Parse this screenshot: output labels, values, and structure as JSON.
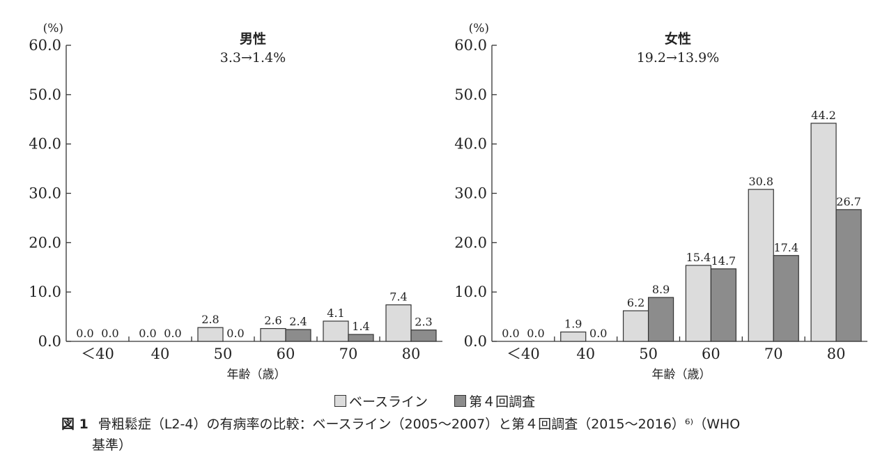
{
  "chart_data": [
    {
      "type": "bar",
      "title": "男性",
      "subtitle": "3.3→1.4%",
      "unit_label": "(%)",
      "xlabel": "年齢（歳）",
      "ylabel": "",
      "ylim": [
        0,
        60
      ],
      "yticks": [
        "0.0",
        "10.0",
        "20.0",
        "30.0",
        "40.0",
        "50.0",
        "60.0"
      ],
      "categories": [
        "＜40",
        "40",
        "50",
        "60",
        "70",
        "80"
      ],
      "series": [
        {
          "name": "ベースライン",
          "values": [
            0.0,
            0.0,
            2.8,
            2.6,
            4.1,
            7.4
          ]
        },
        {
          "name": "第４回調査",
          "values": [
            0.0,
            0.0,
            0.0,
            2.4,
            1.4,
            2.3
          ]
        }
      ],
      "grid": false,
      "legend": "bottom"
    },
    {
      "type": "bar",
      "title": "女性",
      "subtitle": "19.2→13.9%",
      "unit_label": "(%)",
      "xlabel": "年齢（歳）",
      "ylabel": "",
      "ylim": [
        0,
        60
      ],
      "yticks": [
        "0.0",
        "10.0",
        "20.0",
        "30.0",
        "40.0",
        "50.0",
        "60.0"
      ],
      "categories": [
        "＜40",
        "40",
        "50",
        "60",
        "70",
        "80"
      ],
      "series": [
        {
          "name": "ベースライン",
          "values": [
            0.0,
            1.9,
            6.2,
            15.4,
            30.8,
            44.2
          ]
        },
        {
          "name": "第４回調査",
          "values": [
            0.0,
            0.0,
            8.9,
            14.7,
            17.4,
            26.7
          ]
        }
      ],
      "grid": false,
      "legend": "bottom"
    }
  ],
  "legend": {
    "baseline": "ベースライン",
    "survey4": "第４回調査"
  },
  "colors": {
    "baseline": "#dcdcdc",
    "survey4": "#8c8c8c",
    "stroke": "#333333"
  },
  "caption": {
    "label": "図 1",
    "line1": "骨粗鬆症（L2‑4）の有病率の比較：ベースライン（2005〜2007）と第４回調査（2015〜2016）⁶⁾（WHO",
    "line2": "基準）"
  }
}
